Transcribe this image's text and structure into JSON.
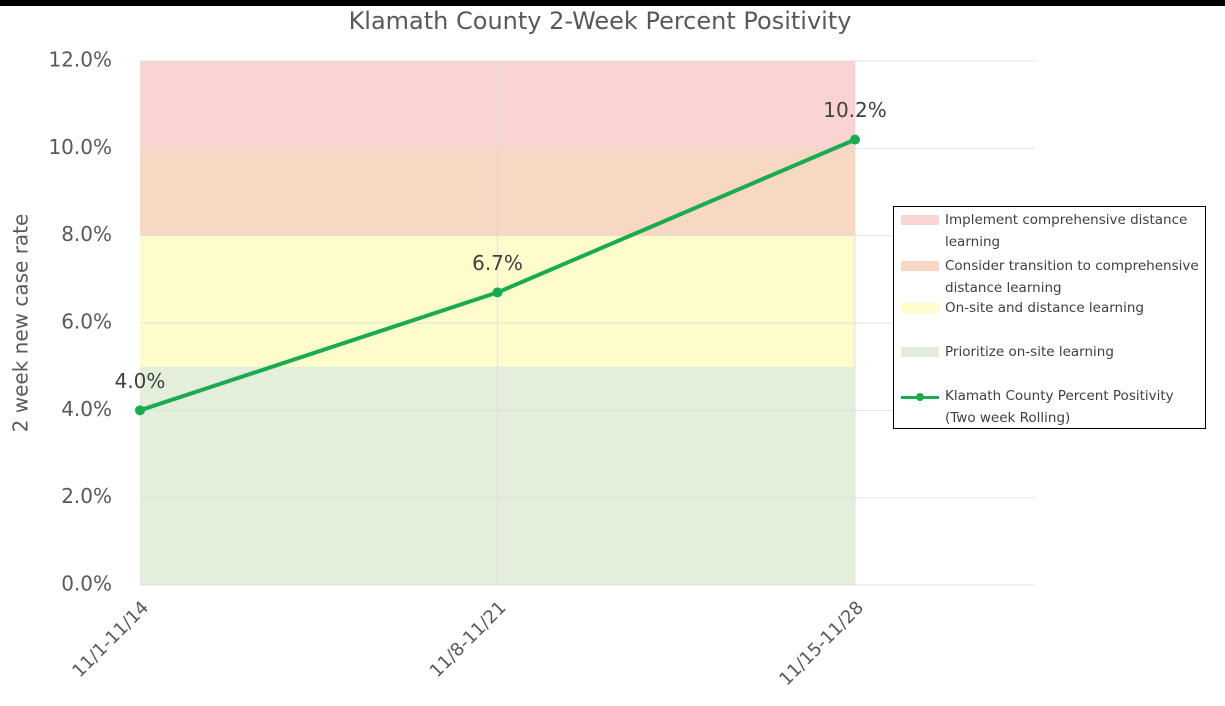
{
  "chart_data": {
    "type": "line",
    "title": "Klamath County 2-Week Percent Positivity",
    "y_label": "2 week new case rate",
    "categories": [
      "11/1-11/14",
      "11/8-11/21",
      "11/15-11/28"
    ],
    "ylim": [
      0,
      12
    ],
    "yticks": [
      {
        "value": 0,
        "label": "0.0%"
      },
      {
        "value": 2,
        "label": "2.0%"
      },
      {
        "value": 4,
        "label": "4.0%"
      },
      {
        "value": 6,
        "label": "6.0%"
      },
      {
        "value": 8,
        "label": "8.0%"
      },
      {
        "value": 10,
        "label": "10.0%"
      },
      {
        "value": 12,
        "label": "12.0%"
      }
    ],
    "grid": true,
    "series": [
      {
        "name": "Implement comprehensive distance learning",
        "type": "area",
        "stacked": true,
        "color": "#fad4d3",
        "values": [
          2,
          2,
          2
        ]
      },
      {
        "name": "Consider transition to comprehensive distance learning",
        "type": "area",
        "stacked": true,
        "color": "#f8d8c2",
        "values": [
          2,
          2,
          2
        ]
      },
      {
        "name": "On-site and distance learning",
        "type": "area",
        "stacked": true,
        "color": "#fdfdcb",
        "values": [
          3,
          3,
          3
        ]
      },
      {
        "name": "Prioritize on-site learning",
        "type": "area",
        "stacked": true,
        "color": "#e3eedb",
        "values": [
          5,
          5,
          5
        ]
      },
      {
        "name": "Klamath County Percent Positivity (Two week Rolling)",
        "type": "line",
        "color": "#1aaa50",
        "values": [
          4.0,
          6.7,
          10.2
        ],
        "value_labels": [
          "4.0%",
          "6.7%",
          "10.2%"
        ]
      }
    ]
  }
}
